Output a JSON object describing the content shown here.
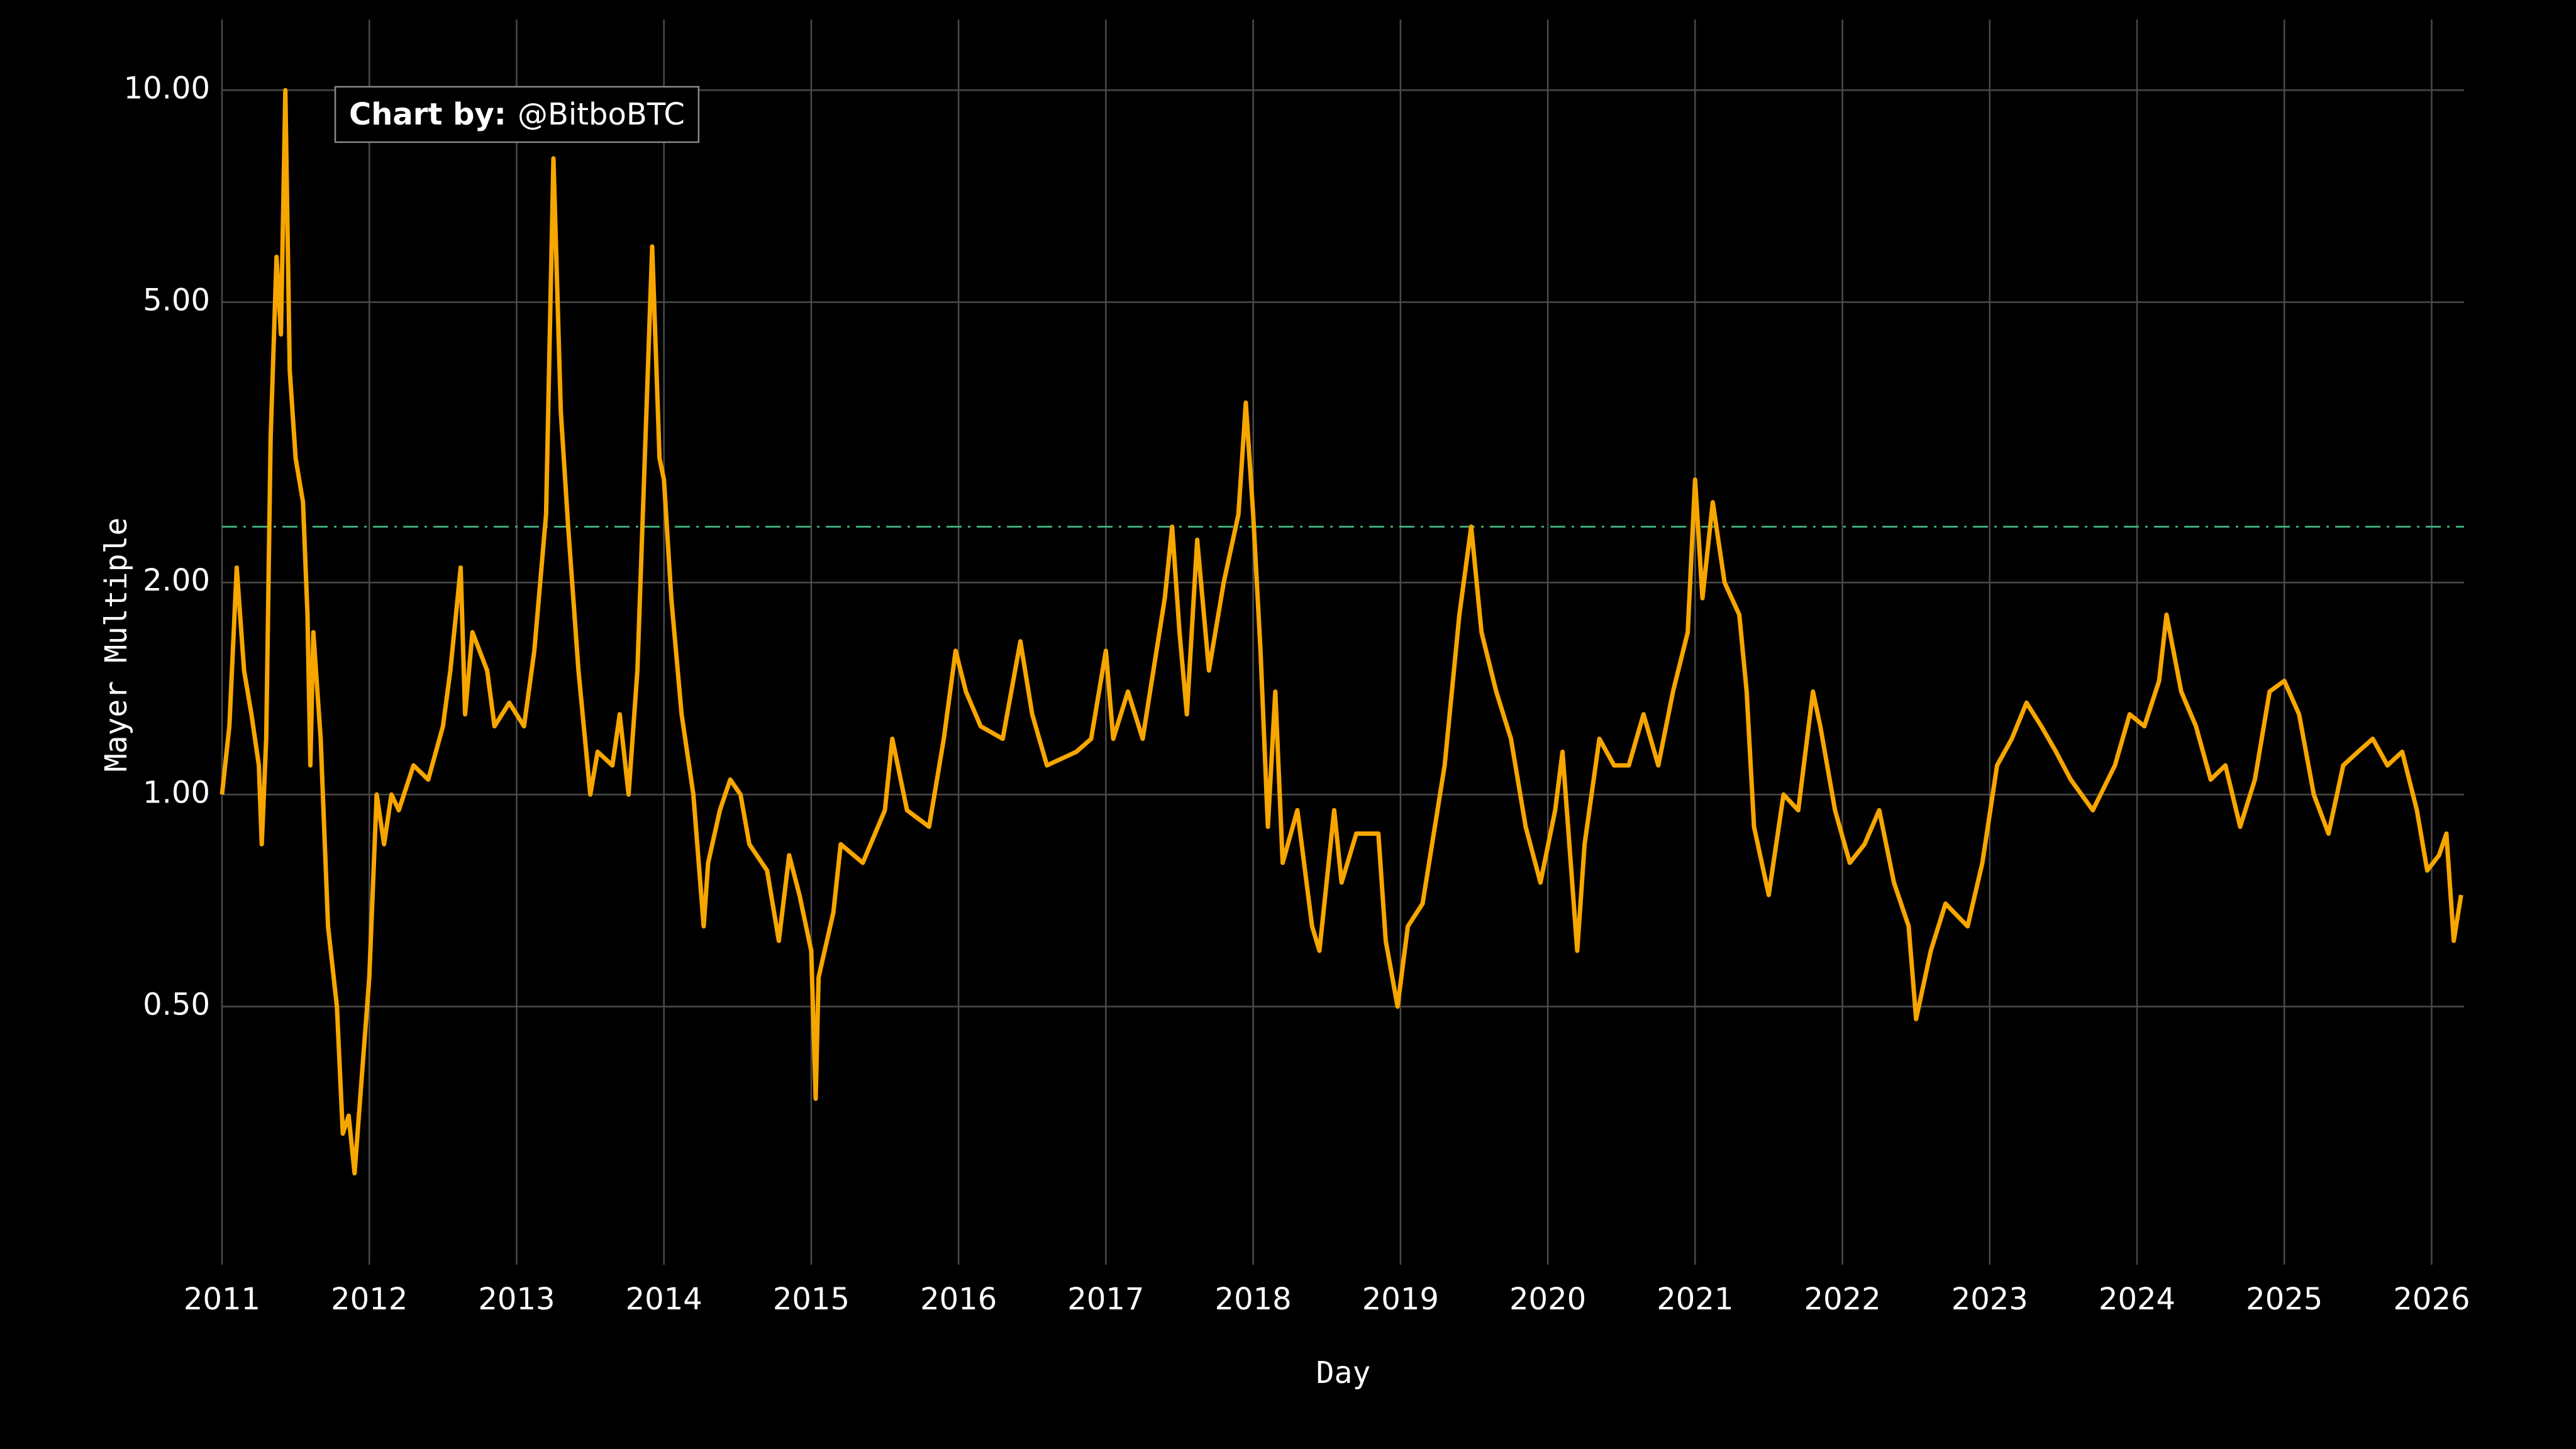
{
  "chart_data": {
    "type": "line",
    "x_label": "Day",
    "y_label": "Mayer Multiple",
    "annotation": {
      "label": "Chart by:",
      "text": "@BitboBTC"
    },
    "log_y": true,
    "grid": true,
    "xlim": [
      2011,
      2026.22
    ],
    "xticks": [
      2011,
      2012,
      2013,
      2014,
      2015,
      2016,
      2017,
      2018,
      2019,
      2020,
      2021,
      2022,
      2023,
      2024,
      2025,
      2026
    ],
    "ylim": [
      0.215,
      12.6
    ],
    "yticks": [
      {
        "value": 0.5,
        "label": "0.50"
      },
      {
        "value": 1,
        "label": "1.00"
      },
      {
        "value": 2,
        "label": "2.00"
      },
      {
        "value": 5,
        "label": "5.00"
      },
      {
        "value": 10,
        "label": "10.00"
      }
    ],
    "reference_line": {
      "value": 2.4,
      "color": "#3fa878"
    },
    "x": [
      2011.0,
      2011.05,
      2011.1,
      2011.15,
      2011.2,
      2011.25,
      2011.27,
      2011.3,
      2011.33,
      2011.37,
      2011.4,
      2011.43,
      2011.46,
      2011.5,
      2011.55,
      2011.58,
      2011.6,
      2011.62,
      2011.67,
      2011.72,
      2011.78,
      2011.82,
      2011.86,
      2011.9,
      2011.95,
      2012.0,
      2012.05,
      2012.1,
      2012.15,
      2012.2,
      2012.3,
      2012.4,
      2012.5,
      2012.55,
      2012.62,
      2012.65,
      2012.7,
      2012.8,
      2012.85,
      2012.95,
      2013.05,
      2013.12,
      2013.2,
      2013.25,
      2013.3,
      2013.35,
      2013.42,
      2013.5,
      2013.55,
      2013.65,
      2013.7,
      2013.76,
      2013.82,
      2013.92,
      2013.97,
      2014.0,
      2014.05,
      2014.12,
      2014.2,
      2014.27,
      2014.3,
      2014.38,
      2014.45,
      2014.52,
      2014.58,
      2014.7,
      2014.78,
      2014.85,
      2014.92,
      2015.0,
      2015.03,
      2015.05,
      2015.15,
      2015.2,
      2015.35,
      2015.5,
      2015.55,
      2015.65,
      2015.8,
      2015.9,
      2015.98,
      2016.05,
      2016.15,
      2016.3,
      2016.42,
      2016.5,
      2016.6,
      2016.8,
      2016.9,
      2017.0,
      2017.05,
      2017.15,
      2017.25,
      2017.4,
      2017.45,
      2017.5,
      2017.55,
      2017.62,
      2017.7,
      2017.8,
      2017.9,
      2017.95,
      2018.0,
      2018.05,
      2018.1,
      2018.15,
      2018.2,
      2018.3,
      2018.4,
      2018.45,
      2018.55,
      2018.6,
      2018.7,
      2018.85,
      2018.9,
      2018.98,
      2019.05,
      2019.15,
      2019.3,
      2019.4,
      2019.48,
      2019.55,
      2019.65,
      2019.75,
      2019.85,
      2019.95,
      2020.05,
      2020.1,
      2020.2,
      2020.25,
      2020.35,
      2020.45,
      2020.55,
      2020.65,
      2020.75,
      2020.85,
      2020.95,
      2021.0,
      2021.05,
      2021.12,
      2021.2,
      2021.3,
      2021.35,
      2021.4,
      2021.5,
      2021.6,
      2021.7,
      2021.8,
      2021.85,
      2021.95,
      2022.05,
      2022.15,
      2022.25,
      2022.35,
      2022.45,
      2022.5,
      2022.6,
      2022.7,
      2022.85,
      2022.95,
      2023.05,
      2023.15,
      2023.25,
      2023.35,
      2023.45,
      2023.55,
      2023.7,
      2023.85,
      2023.95,
      2024.05,
      2024.15,
      2024.2,
      2024.3,
      2024.4,
      2024.5,
      2024.6,
      2024.7,
      2024.8,
      2024.9,
      2025.0,
      2025.1,
      2025.2,
      2025.3,
      2025.4,
      2025.5,
      2025.6,
      2025.7,
      2025.8,
      2025.9,
      2025.97,
      2026.05,
      2026.1,
      2026.15,
      2026.2
    ],
    "series": [
      {
        "color": "#f7a600",
        "values": [
          1.0,
          1.25,
          2.1,
          1.5,
          1.3,
          1.1,
          0.85,
          1.2,
          3.2,
          5.8,
          4.5,
          10.0,
          4.0,
          3.0,
          2.6,
          1.8,
          1.1,
          1.7,
          1.2,
          0.65,
          0.5,
          0.33,
          0.35,
          0.29,
          0.4,
          0.55,
          1.0,
          0.85,
          1.0,
          0.95,
          1.1,
          1.05,
          1.25,
          1.5,
          2.1,
          1.3,
          1.7,
          1.5,
          1.25,
          1.35,
          1.25,
          1.6,
          2.5,
          8.0,
          3.5,
          2.4,
          1.5,
          1.0,
          1.15,
          1.1,
          1.3,
          1.0,
          1.5,
          6.0,
          3.0,
          2.8,
          1.9,
          1.3,
          1.0,
          0.65,
          0.8,
          0.95,
          1.05,
          1.0,
          0.85,
          0.78,
          0.62,
          0.82,
          0.72,
          0.6,
          0.37,
          0.55,
          0.68,
          0.85,
          0.8,
          0.95,
          1.2,
          0.95,
          0.9,
          1.2,
          1.6,
          1.4,
          1.25,
          1.2,
          1.65,
          1.3,
          1.1,
          1.15,
          1.2,
          1.6,
          1.2,
          1.4,
          1.2,
          1.9,
          2.4,
          1.7,
          1.3,
          2.3,
          1.5,
          2.0,
          2.5,
          3.6,
          2.5,
          1.6,
          0.9,
          1.4,
          0.8,
          0.95,
          0.65,
          0.6,
          0.95,
          0.75,
          0.88,
          0.88,
          0.62,
          0.5,
          0.65,
          0.7,
          1.1,
          1.8,
          2.4,
          1.7,
          1.4,
          1.2,
          0.9,
          0.75,
          0.95,
          1.15,
          0.6,
          0.85,
          1.2,
          1.1,
          1.1,
          1.3,
          1.1,
          1.4,
          1.7,
          2.8,
          1.9,
          2.6,
          2.0,
          1.8,
          1.4,
          0.9,
          0.72,
          1.0,
          0.95,
          1.4,
          1.25,
          0.95,
          0.8,
          0.85,
          0.95,
          0.75,
          0.65,
          0.48,
          0.6,
          0.7,
          0.65,
          0.8,
          1.1,
          1.2,
          1.35,
          1.25,
          1.15,
          1.05,
          0.95,
          1.1,
          1.3,
          1.25,
          1.45,
          1.8,
          1.4,
          1.25,
          1.05,
          1.1,
          0.9,
          1.05,
          1.4,
          1.45,
          1.3,
          1.0,
          0.88,
          1.1,
          1.15,
          1.2,
          1.1,
          1.15,
          0.95,
          0.78,
          0.82,
          0.88,
          0.62,
          0.72
        ]
      }
    ]
  }
}
